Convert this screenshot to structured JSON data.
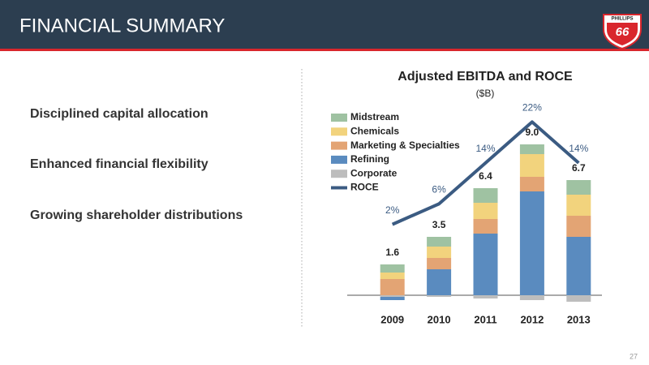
{
  "header": {
    "title": "FINANCIAL SUMMARY"
  },
  "logo": {
    "brand": "PHILLIPS",
    "number": "66"
  },
  "bullets": [
    "Disciplined capital allocation",
    "Enhanced financial flexibility",
    "Growing shareholder distributions"
  ],
  "page_number": "27",
  "chart_data": {
    "type": "bar",
    "stacked": true,
    "title": "Adjusted EBITDA and ROCE",
    "subtitle": "($B)",
    "categories": [
      "2009",
      "2010",
      "2011",
      "2012",
      "2013"
    ],
    "ylim": [
      -1,
      11
    ],
    "y2lim": [
      -15,
      23
    ],
    "legend": "top-left",
    "series": [
      {
        "name": "Midstream",
        "color": "#9fc2a2",
        "values": [
          0.5,
          0.6,
          0.9,
          0.6,
          0.9
        ]
      },
      {
        "name": "Chemicals",
        "color": "#f2d37d",
        "values": [
          0.4,
          0.7,
          1.0,
          1.4,
          1.3
        ]
      },
      {
        "name": "Marketing & Specialties",
        "color": "#e3a474",
        "values": [
          1.0,
          0.7,
          0.9,
          0.9,
          1.3
        ]
      },
      {
        "name": "Refining",
        "color": "#5a8bbf",
        "values": [
          -0.2,
          1.6,
          3.8,
          6.4,
          3.6
        ]
      },
      {
        "name": "Corporate",
        "color": "#bdbdbd",
        "values": [
          -0.1,
          -0.1,
          -0.2,
          -0.3,
          -0.4
        ]
      },
      {
        "name": "ROCE",
        "type": "line",
        "axis": "y2",
        "color": "#3b5b82",
        "values": [
          2,
          6,
          14,
          22,
          14
        ],
        "value_labels": [
          "2%",
          "6%",
          "14%",
          "22%",
          "14%"
        ]
      }
    ],
    "totals": {
      "values": [
        1.6,
        3.5,
        6.4,
        9.0,
        6.7
      ],
      "value_labels": [
        "1.6",
        "3.5",
        "6.4",
        "9.0",
        "6.7"
      ]
    }
  }
}
